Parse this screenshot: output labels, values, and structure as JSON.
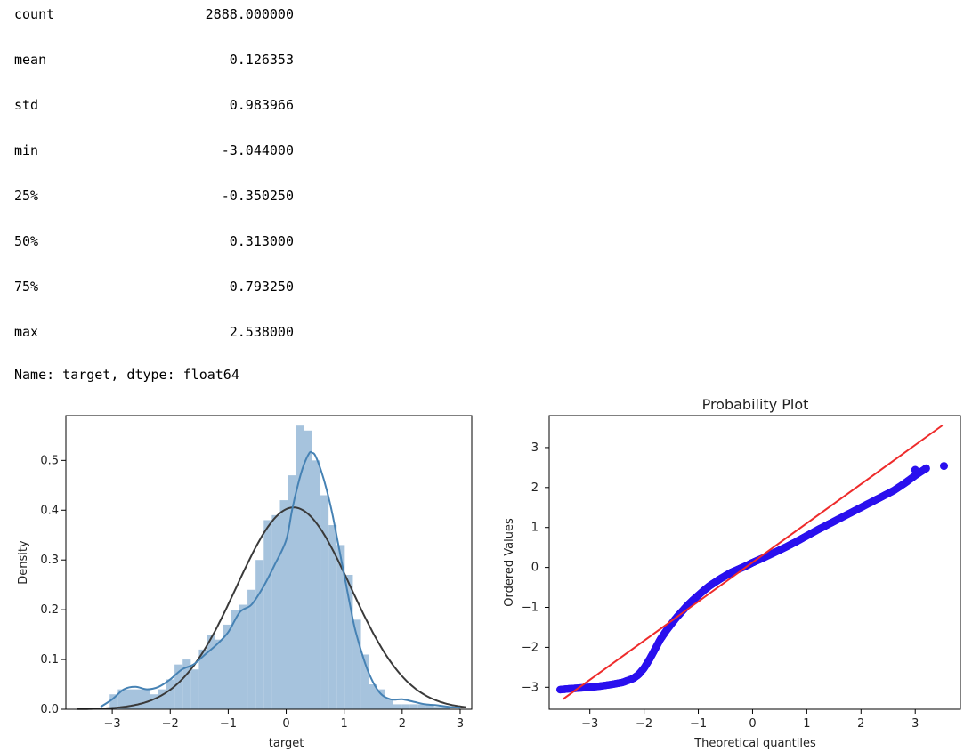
{
  "describe": {
    "rows": [
      {
        "key": "count",
        "value": "2888.000000"
      },
      {
        "key": "mean",
        "value": "0.126353"
      },
      {
        "key": "std",
        "value": "0.983966"
      },
      {
        "key": "min",
        "value": "-3.044000"
      },
      {
        "key": "25%",
        "value": "-0.350250"
      },
      {
        "key": "50%",
        "value": "0.313000"
      },
      {
        "key": "75%",
        "value": "0.793250"
      },
      {
        "key": "max",
        "value": "2.538000"
      }
    ],
    "footer": "Name: target, dtype: float64"
  },
  "colors": {
    "hist": "#a6c3dd",
    "kde": "#4682b4",
    "norm": "#3a3a3a",
    "points": "#2a10ee",
    "fit": "#ee2b2b"
  },
  "chart_data": [
    {
      "type": "bar",
      "title": "",
      "xlabel": "target",
      "ylabel": "Density",
      "xlim": [
        -3.8,
        3.2
      ],
      "ylim": [
        0,
        0.59
      ],
      "xticks": [
        -3,
        -2,
        -1,
        0,
        1,
        2,
        3
      ],
      "yticks": [
        0.0,
        0.1,
        0.2,
        0.3,
        0.4,
        0.5
      ],
      "ytick_labels": [
        "0.0",
        "0.1",
        "0.2",
        "0.3",
        "0.4",
        "0.5"
      ],
      "bins": {
        "start": -3.044,
        "width": 0.1398,
        "heights": [
          0.03,
          0.04,
          0.04,
          0.04,
          0.04,
          0.03,
          0.04,
          0.06,
          0.09,
          0.1,
          0.08,
          0.12,
          0.15,
          0.14,
          0.17,
          0.2,
          0.21,
          0.24,
          0.3,
          0.38,
          0.39,
          0.42,
          0.47,
          0.57,
          0.56,
          0.5,
          0.43,
          0.37,
          0.33,
          0.27,
          0.18,
          0.11,
          0.05,
          0.04,
          0.02,
          0.01,
          0.01,
          0.01,
          0.01,
          0.01,
          0.005,
          0.005
        ]
      },
      "series": [
        {
          "name": "kde",
          "x": [
            -3.2,
            -3.0,
            -2.8,
            -2.6,
            -2.4,
            -2.2,
            -2.0,
            -1.8,
            -1.6,
            -1.4,
            -1.2,
            -1.0,
            -0.8,
            -0.6,
            -0.4,
            -0.2,
            0.0,
            0.1,
            0.2,
            0.3,
            0.4,
            0.45,
            0.5,
            0.6,
            0.7,
            0.8,
            0.9,
            1.0,
            1.1,
            1.2,
            1.4,
            1.6,
            1.8,
            2.0,
            2.2,
            2.4,
            2.6,
            2.8,
            3.0
          ],
          "y": [
            0.005,
            0.02,
            0.04,
            0.045,
            0.04,
            0.045,
            0.06,
            0.08,
            0.09,
            0.11,
            0.13,
            0.155,
            0.195,
            0.21,
            0.245,
            0.29,
            0.34,
            0.4,
            0.45,
            0.49,
            0.515,
            0.515,
            0.51,
            0.48,
            0.44,
            0.39,
            0.33,
            0.27,
            0.21,
            0.155,
            0.08,
            0.035,
            0.02,
            0.02,
            0.015,
            0.01,
            0.008,
            0.005,
            0.003
          ]
        },
        {
          "name": "normal-fit",
          "mean": 0.126353,
          "std": 0.983966,
          "x_range": [
            -3.6,
            3.1
          ]
        }
      ]
    },
    {
      "type": "scatter",
      "title": "Probability Plot",
      "xlabel": "Theoretical quantiles",
      "ylabel": "Ordered Values",
      "xlim": [
        -3.75,
        3.85
      ],
      "ylim": [
        -3.55,
        3.8
      ],
      "xticks": [
        -3,
        -2,
        -1,
        0,
        1,
        2,
        3
      ],
      "yticks": [
        -3,
        -2,
        -1,
        0,
        1,
        2,
        3
      ],
      "quantile_curve": {
        "x": [
          -3.55,
          -3.4,
          -3.2,
          -3.0,
          -2.8,
          -2.6,
          -2.4,
          -2.2,
          -2.1,
          -2.0,
          -1.9,
          -1.8,
          -1.7,
          -1.6,
          -1.5,
          -1.4,
          -1.3,
          -1.2,
          -1.1,
          -1.0,
          -0.9,
          -0.8,
          -0.7,
          -0.6,
          -0.5,
          -0.4,
          -0.3,
          -0.2,
          -0.1,
          0.0,
          0.2,
          0.4,
          0.6,
          0.8,
          1.0,
          1.2,
          1.4,
          1.6,
          1.8,
          2.0,
          2.2,
          2.4,
          2.6,
          2.8,
          3.0,
          3.2
        ],
        "y": [
          -3.06,
          -3.04,
          -3.02,
          -3.0,
          -2.97,
          -2.93,
          -2.88,
          -2.78,
          -2.68,
          -2.52,
          -2.3,
          -2.05,
          -1.8,
          -1.6,
          -1.42,
          -1.25,
          -1.1,
          -0.95,
          -0.82,
          -0.7,
          -0.58,
          -0.47,
          -0.38,
          -0.29,
          -0.21,
          -0.13,
          -0.07,
          -0.01,
          0.05,
          0.12,
          0.24,
          0.37,
          0.5,
          0.64,
          0.79,
          0.94,
          1.08,
          1.22,
          1.36,
          1.5,
          1.64,
          1.78,
          1.92,
          2.1,
          2.3,
          2.48
        ]
      },
      "extra_points": [
        {
          "x": 3.0,
          "y": 2.44
        },
        {
          "x": 3.2,
          "y": 2.48
        },
        {
          "x": 3.53,
          "y": 2.54
        }
      ],
      "fit_line": {
        "slope": 0.9796,
        "intercept": 0.1264,
        "x_range": [
          -3.5,
          3.5
        ]
      }
    }
  ]
}
